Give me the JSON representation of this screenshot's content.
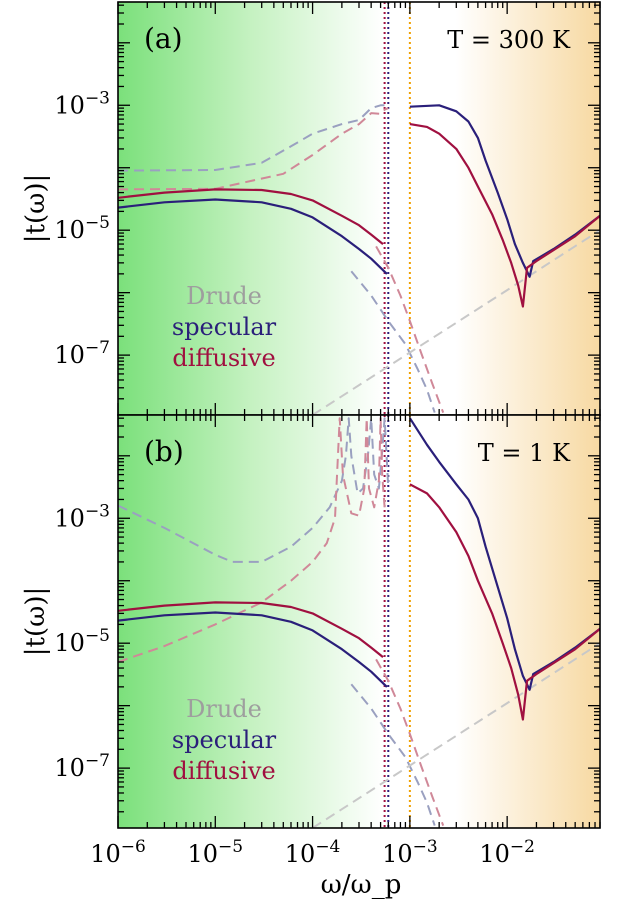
{
  "chart_data": [
    {
      "type": "line",
      "panel_label": "(a)",
      "annotation_T": "T = 300 K",
      "ylabel": "|t(ω)|",
      "xlabel": "ω/ω_p",
      "xscale": "log",
      "yscale": "log",
      "xlim": [
        1e-06,
        0.09
      ],
      "ylim": [
        1.1e-08,
        0.045
      ],
      "x_ticks": [
        "10^-6",
        "10^-5",
        "10^-4",
        "10^-3",
        "10^-2"
      ],
      "y_ticks": [
        "10^-3",
        "10^-5",
        "10^-7"
      ],
      "legend": [
        "Drude",
        "specular",
        "diffusive"
      ],
      "vertical_lines": [
        {
          "x": 0.00055,
          "color": "#a01040"
        },
        {
          "x": 0.0006,
          "color": "#2a1f7a"
        },
        {
          "x": 0.001,
          "color": "#f0a000"
        }
      ],
      "series": [
        {
          "name": "Drude",
          "style": "dashed",
          "color": "#9aa0c0",
          "points": [
            [
              1e-06,
              9e-05
            ],
            [
              1e-05,
              9.2e-05
            ],
            [
              3e-05,
              0.00012
            ],
            [
              6e-05,
              0.00022
            ],
            [
              0.0001,
              0.00035
            ],
            [
              0.0002,
              0.0005
            ],
            [
              0.0003,
              0.00058
            ],
            [
              0.0004,
              0.0009
            ],
            [
              0.0005,
              0.001
            ],
            [
              0.0006,
              0.001
            ]
          ]
        },
        {
          "name": "Drude",
          "style": "dashed",
          "color": "#d08898",
          "points": [
            [
              1e-06,
              4.5e-05
            ],
            [
              1e-05,
              4.6e-05
            ],
            [
              5e-05,
              8e-05
            ],
            [
              0.0001,
              0.00016
            ],
            [
              0.0002,
              0.00035
            ],
            [
              0.0003,
              0.0005
            ],
            [
              0.0004,
              0.00075
            ],
            [
              0.0005,
              0.00073
            ],
            [
              0.00055,
              0.00085
            ],
            [
              0.0006,
              0.0009
            ]
          ]
        },
        {
          "name": "Drude",
          "style": "dashed",
          "color": "#9aa0c0",
          "points": [
            [
              0.00025,
              2.2e-06
            ],
            [
              0.0004,
              9e-07
            ],
            [
              0.0006,
              3.5e-07
            ],
            [
              0.0009,
              1.5e-07
            ],
            [
              0.0012,
              6e-08
            ],
            [
              0.0015,
              2.8e-08
            ],
            [
              0.0018,
              1.2e-08
            ]
          ]
        },
        {
          "name": "Drude",
          "style": "dashed",
          "color": "#d08898",
          "points": [
            [
              0.00045,
              5.5e-06
            ],
            [
              0.0006,
              2.5e-06
            ],
            [
              0.0008,
              9e-07
            ],
            [
              0.001,
              3.5e-07
            ],
            [
              0.0013,
              1.1e-07
            ],
            [
              0.0017,
              3.5e-08
            ],
            [
              0.0022,
              1.2e-08
            ]
          ]
        },
        {
          "name": "Drude",
          "style": "dashed",
          "color": "#c8c8c8",
          "points": [
            [
              0.0001,
              1.1e-08
            ],
            [
              0.001,
              1.1e-07
            ],
            [
              0.01,
              1.1e-06
            ],
            [
              0.09,
              1e-05
            ]
          ]
        },
        {
          "name": "specular",
          "style": "solid",
          "color": "#2a1f7a",
          "points": [
            [
              1e-06,
              2.3e-05
            ],
            [
              3e-06,
              2.8e-05
            ],
            [
              1e-05,
              3.1e-05
            ],
            [
              3e-05,
              2.8e-05
            ],
            [
              6e-05,
              2.2e-05
            ],
            [
              0.0001,
              1.6e-05
            ],
            [
              0.0002,
              8e-06
            ],
            [
              0.0003,
              5e-06
            ],
            [
              0.0004,
              3.5e-06
            ],
            [
              0.0005,
              2.5e-06
            ],
            [
              0.00058,
              2e-06
            ]
          ]
        },
        {
          "name": "diffusive",
          "style": "solid",
          "color": "#a01040",
          "points": [
            [
              1e-06,
              3.3e-05
            ],
            [
              3e-06,
              4e-05
            ],
            [
              1e-05,
              4.5e-05
            ],
            [
              3e-05,
              4.4e-05
            ],
            [
              6e-05,
              3.8e-05
            ],
            [
              0.0001,
              3e-05
            ],
            [
              0.0002,
              1.7e-05
            ],
            [
              0.0003,
              1.2e-05
            ],
            [
              0.0004,
              8.5e-06
            ],
            [
              0.00053,
              6e-06
            ]
          ]
        },
        {
          "name": "specular",
          "style": "solid",
          "color": "#2a1f7a",
          "points": [
            [
              0.001,
              0.00095
            ],
            [
              0.002,
              0.001
            ],
            [
              0.003,
              0.0008
            ],
            [
              0.004,
              0.00055
            ],
            [
              0.005,
              0.0003
            ],
            [
              0.006,
              0.00013
            ],
            [
              0.008,
              4e-05
            ],
            [
              0.01,
              1.5e-05
            ],
            [
              0.012,
              6e-06
            ],
            [
              0.0145,
              3e-06
            ],
            [
              0.017,
              1.8e-06
            ],
            [
              0.0185,
              3.2e-06
            ],
            [
              0.03,
              5e-06
            ],
            [
              0.05,
              8.5e-06
            ],
            [
              0.09,
              1.7e-05
            ]
          ]
        },
        {
          "name": "diffusive",
          "style": "solid",
          "color": "#a01040",
          "points": [
            [
              0.001,
              0.0005
            ],
            [
              0.0015,
              0.00045
            ],
            [
              0.002,
              0.00035
            ],
            [
              0.003,
              0.0002
            ],
            [
              0.004,
              0.0001
            ],
            [
              0.005,
              5e-05
            ],
            [
              0.007,
              1.8e-05
            ],
            [
              0.009,
              7e-06
            ],
            [
              0.011,
              3e-06
            ],
            [
              0.013,
              1.3e-06
            ],
            [
              0.0145,
              6e-07
            ],
            [
              0.016,
              2.5e-06
            ],
            [
              0.02,
              3.2e-06
            ],
            [
              0.05,
              8e-06
            ],
            [
              0.09,
              1.7e-05
            ]
          ]
        }
      ]
    },
    {
      "type": "line",
      "panel_label": "(b)",
      "annotation_T": "T = 1 K",
      "ylabel": "|t(ω)|",
      "xlabel": "ω/ω_p",
      "xscale": "log",
      "yscale": "log",
      "xlim": [
        1e-06,
        0.09
      ],
      "ylim": [
        1.1e-08,
        0.045
      ],
      "x_ticks": [
        "10^-6",
        "10^-5",
        "10^-4",
        "10^-3",
        "10^-2"
      ],
      "y_ticks": [
        "10^-3",
        "10^-5",
        "10^-7"
      ],
      "legend": [
        "Drude",
        "specular",
        "diffusive"
      ],
      "vertical_lines": [
        {
          "x": 0.00055,
          "color": "#a01040"
        },
        {
          "x": 0.0006,
          "color": "#2a1f7a"
        },
        {
          "x": 0.001,
          "color": "#f0a000"
        }
      ],
      "series": [
        {
          "name": "Drude",
          "style": "dashed",
          "color": "#9aa0c0",
          "points": [
            [
              1e-06,
              0.0016
            ],
            [
              3e-06,
              0.0007
            ],
            [
              1e-05,
              0.00026
            ],
            [
              1.5e-05,
              0.0002
            ],
            [
              3e-05,
              0.0002
            ],
            [
              6e-05,
              0.00035
            ],
            [
              0.0001,
              0.0007
            ],
            [
              0.00015,
              0.0015
            ],
            [
              0.0002,
              0.004
            ],
            [
              0.00022,
              0.01
            ],
            [
              0.000235,
              0.04
            ],
            [
              0.00025,
              0.01
            ],
            [
              0.00029,
              0.0025
            ],
            [
              0.00033,
              0.003
            ],
            [
              0.00037,
              0.01
            ],
            [
              0.0004,
              0.04
            ],
            [
              0.00043,
              0.005
            ],
            [
              0.00048,
              0.003
            ],
            [
              0.00052,
              0.012
            ],
            [
              0.00055,
              0.04
            ],
            [
              0.00058,
              0.008
            ],
            [
              0.0006,
              0.003
            ]
          ]
        },
        {
          "name": "Drude",
          "style": "dashed",
          "color": "#d08898",
          "points": [
            [
              1e-06,
              5e-06
            ],
            [
              3e-06,
              9e-06
            ],
            [
              1e-05,
              2e-05
            ],
            [
              3e-05,
              4.5e-05
            ],
            [
              6e-05,
              0.0001
            ],
            [
              0.0001,
              0.0002
            ],
            [
              0.00014,
              0.0004
            ],
            [
              0.00017,
              0.001
            ],
            [
              0.00019,
              0.04
            ],
            [
              0.000205,
              0.005
            ],
            [
              0.00025,
              0.0012
            ],
            [
              0.0003,
              0.0011
            ],
            [
              0.00034,
              0.003
            ],
            [
              0.00036,
              0.04
            ],
            [
              0.00038,
              0.003
            ],
            [
              0.00043,
              0.0015
            ],
            [
              0.00048,
              0.004
            ],
            [
              0.0005,
              0.04
            ],
            [
              0.00052,
              0.005
            ],
            [
              0.00055,
              0.0015
            ]
          ]
        },
        {
          "name": "Drude",
          "style": "dashed",
          "color": "#9aa0c0",
          "points": [
            [
              0.00025,
              2.2e-06
            ],
            [
              0.0004,
              9e-07
            ],
            [
              0.0006,
              3.5e-07
            ],
            [
              0.0009,
              1.5e-07
            ],
            [
              0.0012,
              6e-08
            ],
            [
              0.0015,
              2.8e-08
            ],
            [
              0.0018,
              1.2e-08
            ]
          ]
        },
        {
          "name": "Drude",
          "style": "dashed",
          "color": "#d08898",
          "points": [
            [
              0.00045,
              5.5e-06
            ],
            [
              0.0006,
              2.5e-06
            ],
            [
              0.0008,
              9e-07
            ],
            [
              0.001,
              3.5e-07
            ],
            [
              0.0013,
              1.1e-07
            ],
            [
              0.0017,
              3.5e-08
            ],
            [
              0.0022,
              1.2e-08
            ]
          ]
        },
        {
          "name": "Drude",
          "style": "dashed",
          "color": "#c8c8c8",
          "points": [
            [
              0.0001,
              1.1e-08
            ],
            [
              0.001,
              1.1e-07
            ],
            [
              0.01,
              1.1e-06
            ],
            [
              0.09,
              1e-05
            ]
          ]
        },
        {
          "name": "specular",
          "style": "solid",
          "color": "#2a1f7a",
          "points": [
            [
              1e-06,
              2.3e-05
            ],
            [
              3e-06,
              2.8e-05
            ],
            [
              1e-05,
              3.1e-05
            ],
            [
              3e-05,
              2.8e-05
            ],
            [
              6e-05,
              2.2e-05
            ],
            [
              0.0001,
              1.6e-05
            ],
            [
              0.0002,
              8e-06
            ],
            [
              0.0003,
              5e-06
            ],
            [
              0.0004,
              3.5e-06
            ],
            [
              0.0005,
              2.5e-06
            ],
            [
              0.00058,
              2e-06
            ]
          ]
        },
        {
          "name": "diffusive",
          "style": "solid",
          "color": "#a01040",
          "points": [
            [
              1e-06,
              3.3e-05
            ],
            [
              3e-06,
              4e-05
            ],
            [
              1e-05,
              4.5e-05
            ],
            [
              3e-05,
              4.4e-05
            ],
            [
              6e-05,
              3.8e-05
            ],
            [
              0.0001,
              3e-05
            ],
            [
              0.0002,
              1.7e-05
            ],
            [
              0.0003,
              1.2e-05
            ],
            [
              0.0004,
              8.5e-06
            ],
            [
              0.00053,
              6e-06
            ]
          ]
        },
        {
          "name": "specular",
          "style": "solid",
          "color": "#2a1f7a",
          "points": [
            [
              0.001,
              0.04
            ],
            [
              0.0015,
              0.015
            ],
            [
              0.002,
              0.008
            ],
            [
              0.003,
              0.0035
            ],
            [
              0.004,
              0.002
            ],
            [
              0.005,
              0.001
            ],
            [
              0.006,
              0.00035
            ],
            [
              0.008,
              8e-05
            ],
            [
              0.01,
              2.5e-05
            ],
            [
              0.012,
              8e-06
            ],
            [
              0.0145,
              3e-06
            ],
            [
              0.017,
              1.8e-06
            ],
            [
              0.0185,
              3.2e-06
            ],
            [
              0.03,
              5e-06
            ],
            [
              0.05,
              8.5e-06
            ],
            [
              0.09,
              1.7e-05
            ]
          ]
        },
        {
          "name": "diffusive",
          "style": "solid",
          "color": "#a01040",
          "points": [
            [
              0.001,
              0.0035
            ],
            [
              0.0015,
              0.0025
            ],
            [
              0.002,
              0.0015
            ],
            [
              0.003,
              0.0006
            ],
            [
              0.004,
              0.00025
            ],
            [
              0.005,
              0.0001
            ],
            [
              0.007,
              3e-05
            ],
            [
              0.009,
              1e-05
            ],
            [
              0.011,
              4e-06
            ],
            [
              0.013,
              1.5e-06
            ],
            [
              0.0145,
              6e-07
            ],
            [
              0.016,
              2.5e-06
            ],
            [
              0.02,
              3.2e-06
            ],
            [
              0.05,
              8e-06
            ],
            [
              0.09,
              1.7e-05
            ]
          ]
        }
      ]
    }
  ]
}
